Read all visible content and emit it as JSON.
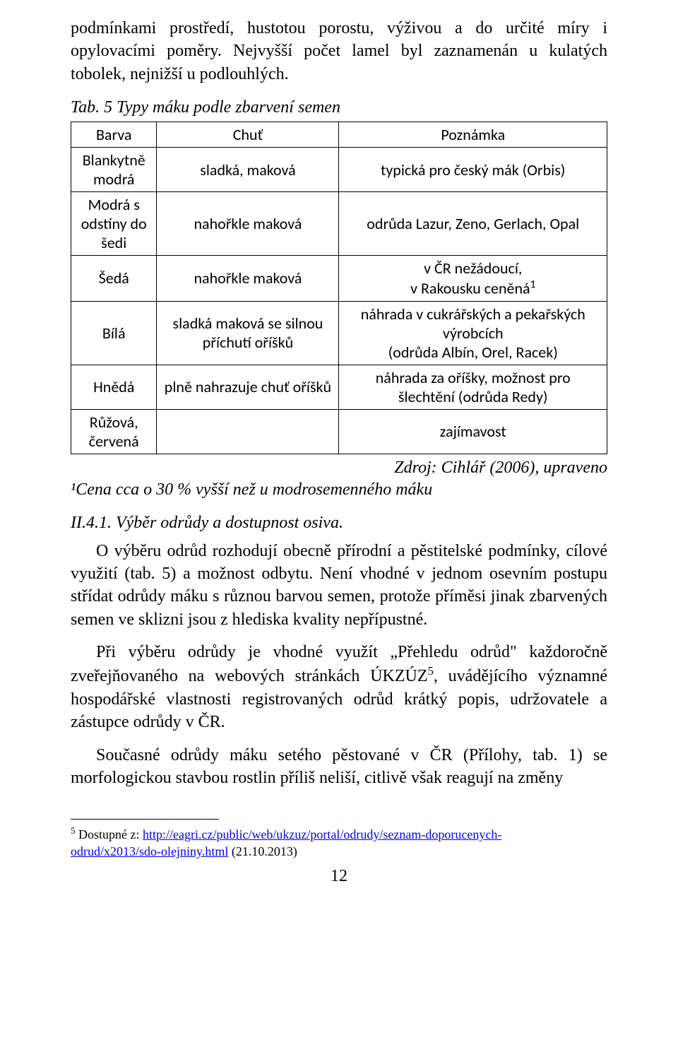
{
  "intro": {
    "p1": "podmínkami prostředí, hustotou porostu, výživou a do určité míry i opylovacími poměry. Nejvyšší počet lamel byl zaznamenán u kulatých tobolek, nejnižší u podlouhlých."
  },
  "table": {
    "caption": "Tab. 5 Typy máku podle zbarvení semen",
    "columns": [
      "Barva",
      "Chuť",
      "Poznámka"
    ],
    "rows": [
      {
        "barva": "Blankytně modrá",
        "chut": "sladká, maková",
        "pozn": "typická pro český mák (Orbis)"
      },
      {
        "barva": "Modrá s odstíny do šedi",
        "chut": "nahořkle maková",
        "pozn": "odrůda Lazur, Zeno, Gerlach, Opal"
      },
      {
        "barva": "Šedá",
        "chut": "nahořkle maková",
        "pozn": "v ČR nežádoucí,\nv Rakousku ceněná¹"
      },
      {
        "barva": "Bílá",
        "chut": "sladká maková se silnou příchutí oříšků",
        "pozn": "náhrada v cukrářských a pekařských výrobcích\n(odrůda Albín, Orel, Racek)"
      },
      {
        "barva": "Hnědá",
        "chut": "plně nahrazuje chuť oříšků",
        "pozn": "náhrada za oříšky, možnost pro šlechtění (odrůda Redy)"
      },
      {
        "barva": "Růžová, červená",
        "chut": "",
        "pozn": "zajímavost"
      }
    ],
    "source": "Zdroj: Cihlář (2006), upraveno",
    "footnote": "¹Cena cca o 30 % vyšší než u modrosemenného máku"
  },
  "heading": "II.4.1.   Výběr odrůdy a dostupnost osiva.",
  "body": {
    "p1": "O výběru odrůd rozhodují obecně přírodní a pěstitelské podmínky, cílové využití (tab. 5) a možnost odbytu. Není vhodné v jednom osevním postupu střídat odrůdy máku s různou barvou semen, protože příměsi jinak zbarvených semen ve sklizni jsou z hlediska kvality nepřípustné.",
    "p2_a": "Při výběru odrůdy je vhodné využít „Přehledu odrůd\" každoročně zveřejňovaného na webových stránkách ÚKZÚZ",
    "p2_sup": "5",
    "p2_b": ", uvádějícího významné hospodářské vlastnosti registrovaných odrůd krátký popis, udržovatele a zástupce odrůdy v ČR.",
    "p3": "Současné odrůdy máku setého pěstované v ČR (Přílohy, tab. 1) se morfologickou stavbou rostlin příliš neliší, citlivě však reagují na změny"
  },
  "footref": {
    "num": "5",
    "pre": " Dostupné z: ",
    "link1": "http://eagri.cz/public/web/ukzuz/portal/odrudy/seznam-doporucenych-",
    "link2": "odrud/x2013/sdo-olejniny.html",
    "post": " (21.10.2013)"
  },
  "pagenum": "12",
  "colors": {
    "link": "#0000ee",
    "text": "#000000",
    "background": "#ffffff",
    "border": "#000000"
  }
}
